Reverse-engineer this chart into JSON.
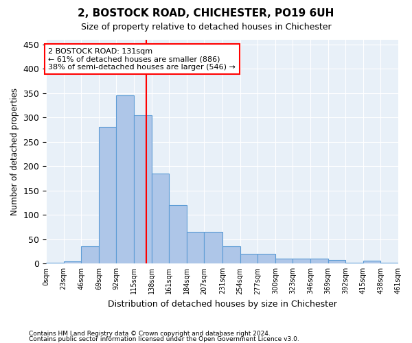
{
  "title1": "2, BOSTOCK ROAD, CHICHESTER, PO19 6UH",
  "title2": "Size of property relative to detached houses in Chichester",
  "xlabel": "Distribution of detached houses by size in Chichester",
  "ylabel": "Number of detached properties",
  "footnote1": "Contains HM Land Registry data © Crown copyright and database right 2024.",
  "footnote2": "Contains public sector information licensed under the Open Government Licence v3.0.",
  "annotation_line1": "2 BOSTOCK ROAD: 131sqm",
  "annotation_line2": "← 61% of detached houses are smaller (886)",
  "annotation_line3": "38% of semi-detached houses are larger (546) →",
  "property_size": 131,
  "bar_edges": [
    0,
    23,
    46,
    69,
    92,
    115,
    138,
    161,
    184,
    207,
    231,
    254,
    277,
    300,
    323,
    346,
    369,
    392,
    415,
    438,
    461
  ],
  "bar_heights": [
    2,
    5,
    35,
    280,
    345,
    305,
    185,
    120,
    65,
    65,
    35,
    20,
    20,
    10,
    10,
    10,
    7,
    2,
    6,
    2
  ],
  "bar_color": "#aec6e8",
  "bar_edge_color": "#5b9bd5",
  "vline_color": "red",
  "vline_x": 131,
  "bg_color": "#e8f0f8",
  "ylim": [
    0,
    460
  ],
  "yticks": [
    0,
    50,
    100,
    150,
    200,
    250,
    300,
    350,
    400,
    450
  ]
}
